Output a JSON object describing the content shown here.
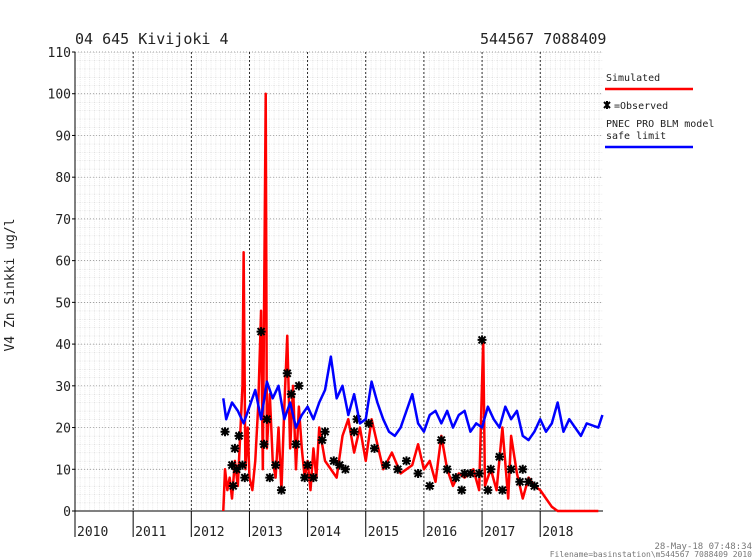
{
  "chart_data": {
    "type": "line",
    "title": "04 645 Kivijoki 4",
    "subtitle": "544567 7088409",
    "ylabel": "V4 Zn Sinkki ug/l",
    "footer": [
      "28-May-18 07:48:34",
      "Filename=basinstation\\m544567 7088409 2010"
    ],
    "xlim": [
      2010,
      2019.08
    ],
    "xticks": [
      2010,
      2011,
      2012,
      2013,
      2014,
      2015,
      2016,
      2017,
      2018
    ],
    "ylim": [
      0,
      110
    ],
    "yticks": [
      0,
      10,
      20,
      30,
      40,
      50,
      60,
      70,
      80,
      90,
      100,
      110
    ],
    "grid": true,
    "legend": "right",
    "series": [
      {
        "name": "Simulated",
        "color": "#ff0000",
        "style": "line",
        "x": [
          2012.55,
          2012.58,
          2012.62,
          2012.66,
          2012.7,
          2012.75,
          2012.8,
          2012.88,
          2012.9,
          2012.93,
          2012.97,
          2013.0,
          2013.05,
          2013.1,
          2013.15,
          2013.2,
          2013.23,
          2013.28,
          2013.3,
          2013.35,
          2013.4,
          2013.45,
          2013.5,
          2013.55,
          2013.6,
          2013.65,
          2013.7,
          2013.75,
          2013.8,
          2013.85,
          2013.9,
          2013.95,
          2014.0,
          2014.05,
          2014.1,
          2014.15,
          2014.2,
          2014.3,
          2014.4,
          2014.5,
          2014.6,
          2014.7,
          2014.8,
          2014.9,
          2015.0,
          2015.1,
          2015.2,
          2015.3,
          2015.45,
          2015.6,
          2015.8,
          2015.9,
          2016.0,
          2016.1,
          2016.2,
          2016.3,
          2016.4,
          2016.5,
          2016.6,
          2016.7,
          2016.85,
          2016.95,
          2017.02,
          2017.05,
          2017.15,
          2017.25,
          2017.35,
          2017.45,
          2017.5,
          2017.6,
          2017.7,
          2017.8,
          2017.9,
          2018.0,
          2018.1,
          2018.2,
          2018.3,
          2019.0
        ],
        "values": [
          0,
          10,
          5,
          8,
          3,
          12,
          6,
          30,
          62,
          10,
          20,
          8,
          5,
          12,
          25,
          48,
          10,
          100,
          15,
          28,
          12,
          8,
          20,
          5,
          25,
          42,
          15,
          30,
          10,
          25,
          15,
          8,
          12,
          5,
          15,
          8,
          20,
          12,
          10,
          8,
          18,
          22,
          14,
          20,
          12,
          22,
          16,
          10,
          14,
          9,
          11,
          16,
          10,
          12,
          7,
          18,
          10,
          6,
          9,
          8,
          10,
          5,
          41,
          6,
          10,
          5,
          20,
          3,
          18,
          9,
          3,
          8,
          6,
          5,
          3,
          1,
          0,
          0
        ]
      },
      {
        "name": "=Observed",
        "color": "#000000",
        "style": "marker",
        "x": [
          2012.58,
          2012.7,
          2012.72,
          2012.75,
          2012.78,
          2012.82,
          2012.88,
          2012.92,
          2013.2,
          2013.25,
          2013.3,
          2013.35,
          2013.45,
          2013.55,
          2013.65,
          2013.72,
          2013.8,
          2013.85,
          2013.95,
          2014.0,
          2014.1,
          2014.25,
          2014.3,
          2014.45,
          2014.55,
          2014.65,
          2014.8,
          2014.85,
          2015.05,
          2015.15,
          2015.35,
          2015.55,
          2015.7,
          2015.9,
          2016.1,
          2016.3,
          2016.4,
          2016.55,
          2016.65,
          2016.7,
          2016.8,
          2016.95,
          2017.0,
          2017.1,
          2017.15,
          2017.3,
          2017.35,
          2017.5,
          2017.65,
          2017.7,
          2017.8,
          2017.9
        ],
        "values": [
          19,
          11,
          6,
          15,
          10,
          18,
          11,
          8,
          43,
          16,
          22,
          8,
          11,
          5,
          33,
          28,
          16,
          30,
          8,
          11,
          8,
          17,
          19,
          12,
          11,
          10,
          19,
          22,
          21,
          15,
          11,
          10,
          12,
          9,
          6,
          17,
          10,
          8,
          5,
          9,
          9,
          9,
          41,
          5,
          10,
          13,
          5,
          10,
          7,
          10,
          7,
          6
        ]
      },
      {
        "name": "PNEC PRO BLM model\nsafe limit",
        "color": "#0000ff",
        "style": "line",
        "x": [
          2012.55,
          2012.6,
          2012.7,
          2012.8,
          2012.9,
          2013.0,
          2013.1,
          2013.2,
          2013.3,
          2013.4,
          2013.5,
          2013.6,
          2013.7,
          2013.8,
          2013.9,
          2014.0,
          2014.1,
          2014.2,
          2014.3,
          2014.4,
          2014.5,
          2014.6,
          2014.7,
          2014.8,
          2014.9,
          2015.0,
          2015.1,
          2015.2,
          2015.3,
          2015.4,
          2015.5,
          2015.6,
          2015.7,
          2015.8,
          2015.9,
          2016.0,
          2016.1,
          2016.2,
          2016.3,
          2016.4,
          2016.5,
          2016.6,
          2016.7,
          2016.8,
          2016.9,
          2017.0,
          2017.1,
          2017.2,
          2017.3,
          2017.4,
          2017.5,
          2017.6,
          2017.7,
          2017.8,
          2017.9,
          2018.0,
          2018.1,
          2018.2,
          2018.3,
          2018.4,
          2018.5,
          2018.6,
          2018.7,
          2018.8,
          2019.0,
          2019.07
        ],
        "values": [
          27,
          22,
          26,
          24,
          21,
          25,
          29,
          22,
          31,
          27,
          30,
          22,
          26,
          20,
          23,
          25,
          22,
          26,
          29,
          37,
          27,
          30,
          23,
          28,
          21,
          22,
          31,
          26,
          22,
          19,
          18,
          20,
          24,
          28,
          21,
          19,
          23,
          24,
          21,
          24,
          20,
          23,
          24,
          19,
          21,
          20,
          25,
          22,
          20,
          25,
          22,
          24,
          18,
          17,
          19,
          22,
          19,
          21,
          26,
          19,
          22,
          20,
          18,
          21,
          20,
          23
        ]
      }
    ]
  }
}
